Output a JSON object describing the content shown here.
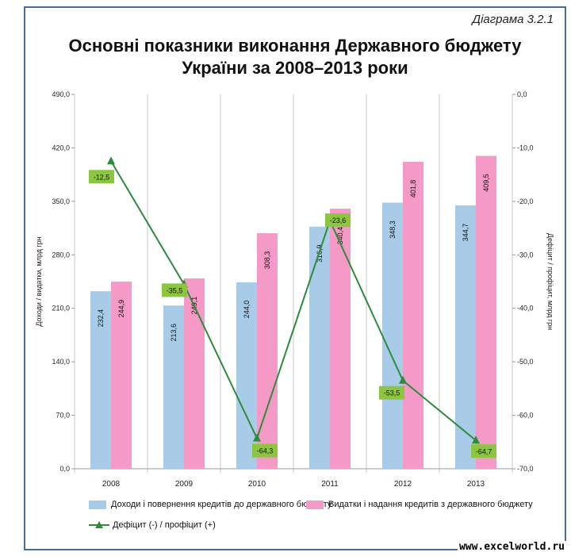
{
  "header": {
    "diagram_number": "Діаграма 3.2.1",
    "title_line1": "Основні показники виконання Державного бюджету",
    "title_line2": "України за 2008–2013 роки"
  },
  "watermark": "www.excelworld.ru",
  "colors": {
    "income": "#a8cbe8",
    "expenses": "#f59ac6",
    "deficit": "#2e8b3a",
    "label_bg": "#8cc63f"
  },
  "chart_data": {
    "type": "bar",
    "categories": [
      "2008",
      "2009",
      "2010",
      "2011",
      "2012",
      "2013"
    ],
    "series": [
      {
        "name": "Доходи і повернення кредитів до державного бюджету",
        "type": "bar",
        "values": [
          232.4,
          213.6,
          244.0,
          316.9,
          348.3,
          344.7
        ],
        "labels": [
          "232,4",
          "213,6",
          "244,0",
          "316,9",
          "348,3",
          "344,7"
        ]
      },
      {
        "name": "Видатки і надання кредитів з державного бюджету",
        "type": "bar",
        "values": [
          244.9,
          249.1,
          308.3,
          340.4,
          401.8,
          409.5
        ],
        "labels": [
          "244,9",
          "249,1",
          "308,3",
          "340,4",
          "401,8",
          "409,5"
        ]
      },
      {
        "name": "Дефіцит (-) / профіцит (+)",
        "type": "line",
        "axis": "right",
        "values": [
          -12.5,
          -35.5,
          -64.3,
          -23.6,
          -53.5,
          -64.7
        ],
        "labels": [
          "-12,5",
          "-35,5",
          "-64,3",
          "-23,6",
          "-53,5",
          "-64,7"
        ]
      }
    ],
    "ylabel": "Доходи / видатки, млрд грн",
    "ylabel_right": "Дефіцит / профіцит, млрд грн",
    "ylim": [
      0,
      490
    ],
    "ylim_right": [
      -70,
      0
    ],
    "yticks": [
      "0,0",
      "70,0",
      "140,0",
      "210,0",
      "280,0",
      "350,0",
      "420,0",
      "490,0"
    ],
    "yticks_right": [
      "-70,0",
      "-60,0",
      "-50,0",
      "-40,0",
      "-30,0",
      "-20,0",
      "-10,0",
      "0,0"
    ],
    "grid": "vertical",
    "legend_position": "bottom"
  }
}
